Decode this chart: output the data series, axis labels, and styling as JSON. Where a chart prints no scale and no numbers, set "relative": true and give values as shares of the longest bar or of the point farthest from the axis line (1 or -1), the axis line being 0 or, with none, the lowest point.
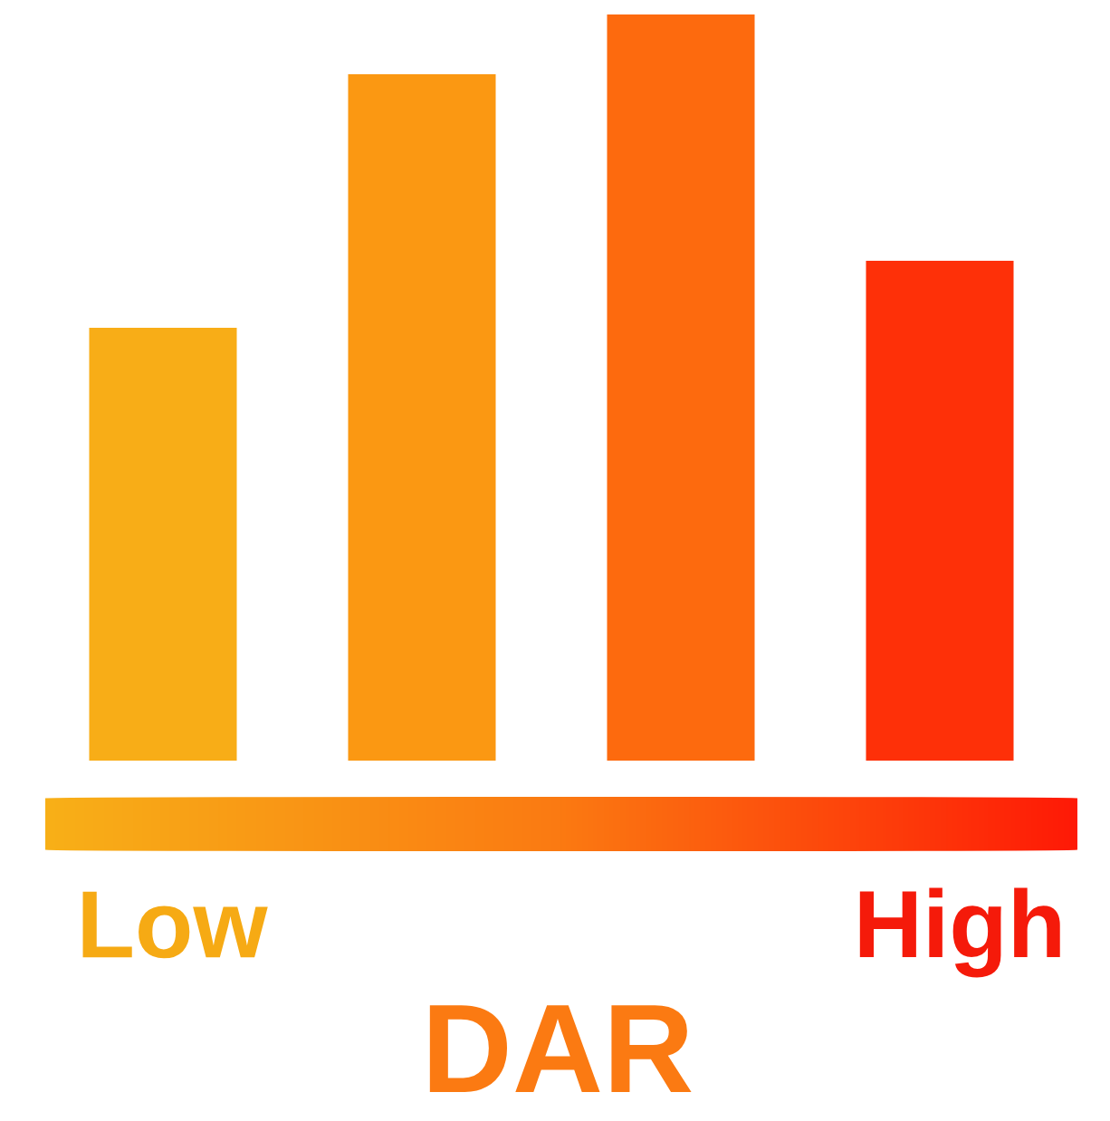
{
  "chart_data": {
    "type": "bar",
    "relative": true,
    "categories": [
      null,
      null,
      null,
      null
    ],
    "values": [
      0.58,
      0.92,
      1,
      0.67
    ],
    "colors": [
      "#f8ad17",
      "#fb9812",
      "#fd6a0e",
      "#fe3008"
    ],
    "xlabel": "DAR",
    "annotations": [
      "Low",
      "High"
    ]
  }
}
